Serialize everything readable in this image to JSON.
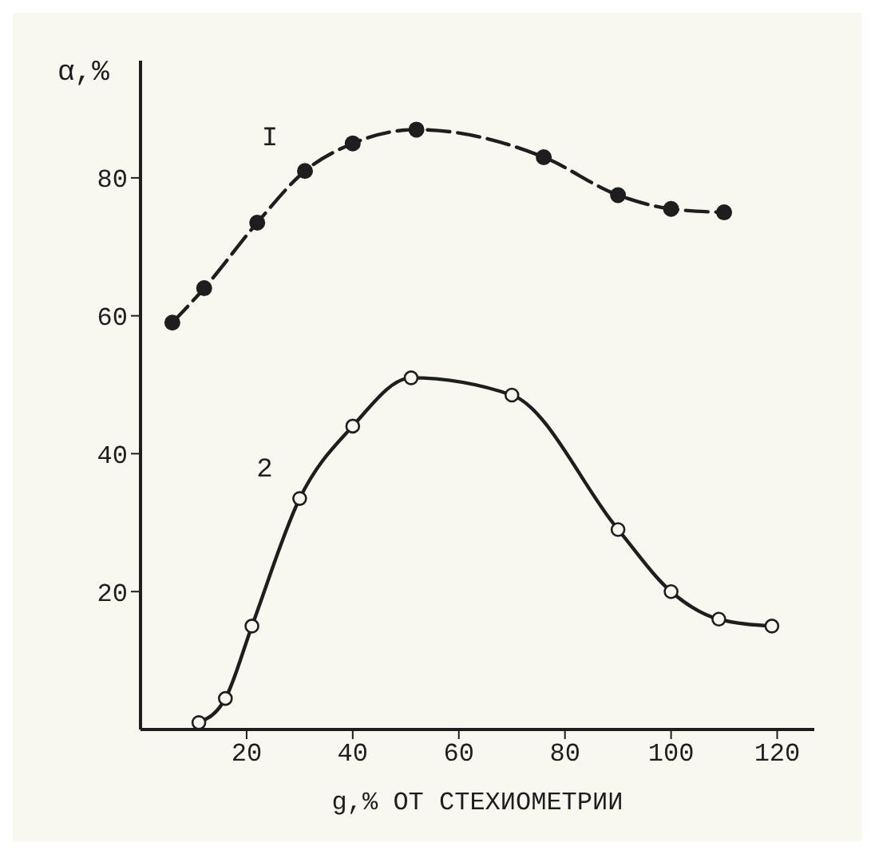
{
  "chart_data": {
    "type": "line",
    "xlabel": "g,% ОТ СТЕХИОМЕТРИИ",
    "ylabel": "α,%",
    "xlim": [
      0,
      127
    ],
    "xticks": [
      20,
      40,
      60,
      80,
      100,
      120
    ],
    "ylim": [
      0,
      97
    ],
    "yticks": [
      20,
      40,
      60,
      80
    ],
    "grid": false,
    "legend": false,
    "series": [
      {
        "name": "I",
        "color": "#1e1e1e",
        "line_style": "dashed",
        "marker": "circle",
        "x": [
          6,
          12,
          22,
          31,
          40,
          52,
          76,
          90,
          100,
          110
        ],
        "values": [
          59,
          64,
          73.5,
          81,
          85,
          87,
          83,
          77.5,
          75.5,
          75
        ]
      },
      {
        "name": "2",
        "color": "#1e1e1e",
        "line_style": "solid",
        "marker": "circle-open",
        "x": [
          11,
          16,
          21,
          30,
          40,
          51,
          70,
          90,
          100,
          109,
          119
        ],
        "values": [
          1,
          4.5,
          15,
          33.5,
          44,
          51,
          48.5,
          29,
          20,
          16,
          15
        ]
      }
    ]
  }
}
